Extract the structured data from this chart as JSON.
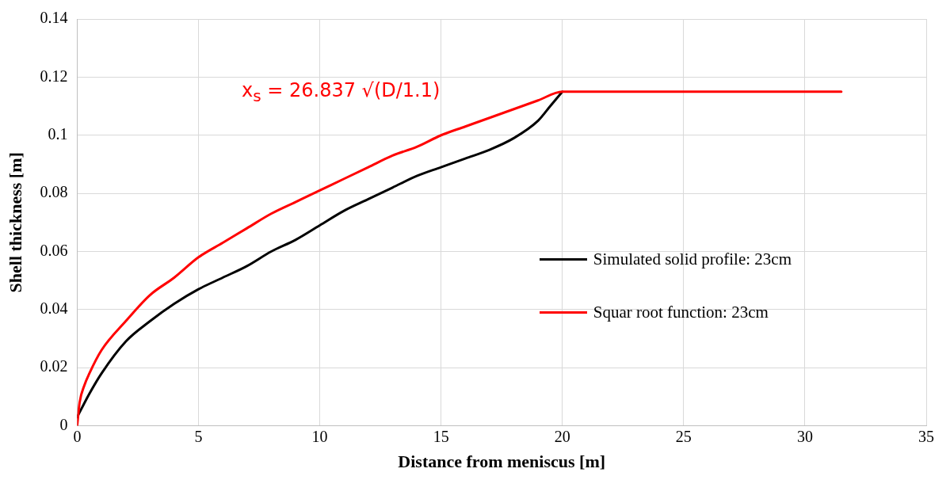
{
  "chart_data": {
    "type": "line",
    "xlabel": "Distance from meniscus [m]",
    "ylabel": "Shell thickness [m]",
    "xlim": [
      0,
      35
    ],
    "xticks": [
      0,
      5,
      10,
      15,
      20,
      25,
      30,
      35
    ],
    "ylim": [
      0,
      0.14
    ],
    "yticks": [
      0,
      0.02,
      0.04,
      0.06,
      0.08,
      0.1,
      0.12,
      0.14
    ],
    "grid": true,
    "legend": "right",
    "marker": "none",
    "line_style": "solid",
    "annotations": [
      "x$_{s}$ = 26.837 √(D/1.1)"
    ],
    "series": [
      {
        "name": "Simulated solid profile: 23cm",
        "color": "#000000",
        "x": [
          0,
          0.5,
          1,
          2,
          3,
          4,
          5,
          6,
          7,
          8,
          9,
          10,
          11,
          12,
          13,
          14,
          15,
          16,
          17,
          18,
          19,
          19.5,
          20
        ],
        "values": [
          0.003,
          0.011,
          0.018,
          0.029,
          0.036,
          0.042,
          0.047,
          0.051,
          0.055,
          0.06,
          0.064,
          0.069,
          0.074,
          0.078,
          0.082,
          0.086,
          0.089,
          0.092,
          0.095,
          0.099,
          0.105,
          0.11,
          0.115
        ]
      },
      {
        "name": "Squar root function: 23cm",
        "color": "#ff0000",
        "x": [
          0,
          0.1,
          0.3,
          0.5,
          1,
          2,
          3,
          4,
          5,
          6,
          7,
          8,
          9,
          10,
          11,
          12,
          13,
          14,
          15,
          16,
          17,
          18,
          19,
          20,
          31.5
        ],
        "values": [
          0,
          0.008,
          0.014,
          0.018,
          0.026,
          0.036,
          0.045,
          0.051,
          0.058,
          0.063,
          0.068,
          0.073,
          0.077,
          0.081,
          0.085,
          0.089,
          0.093,
          0.096,
          0.1,
          0.103,
          0.106,
          0.109,
          0.112,
          0.115,
          0.115
        ]
      }
    ]
  }
}
